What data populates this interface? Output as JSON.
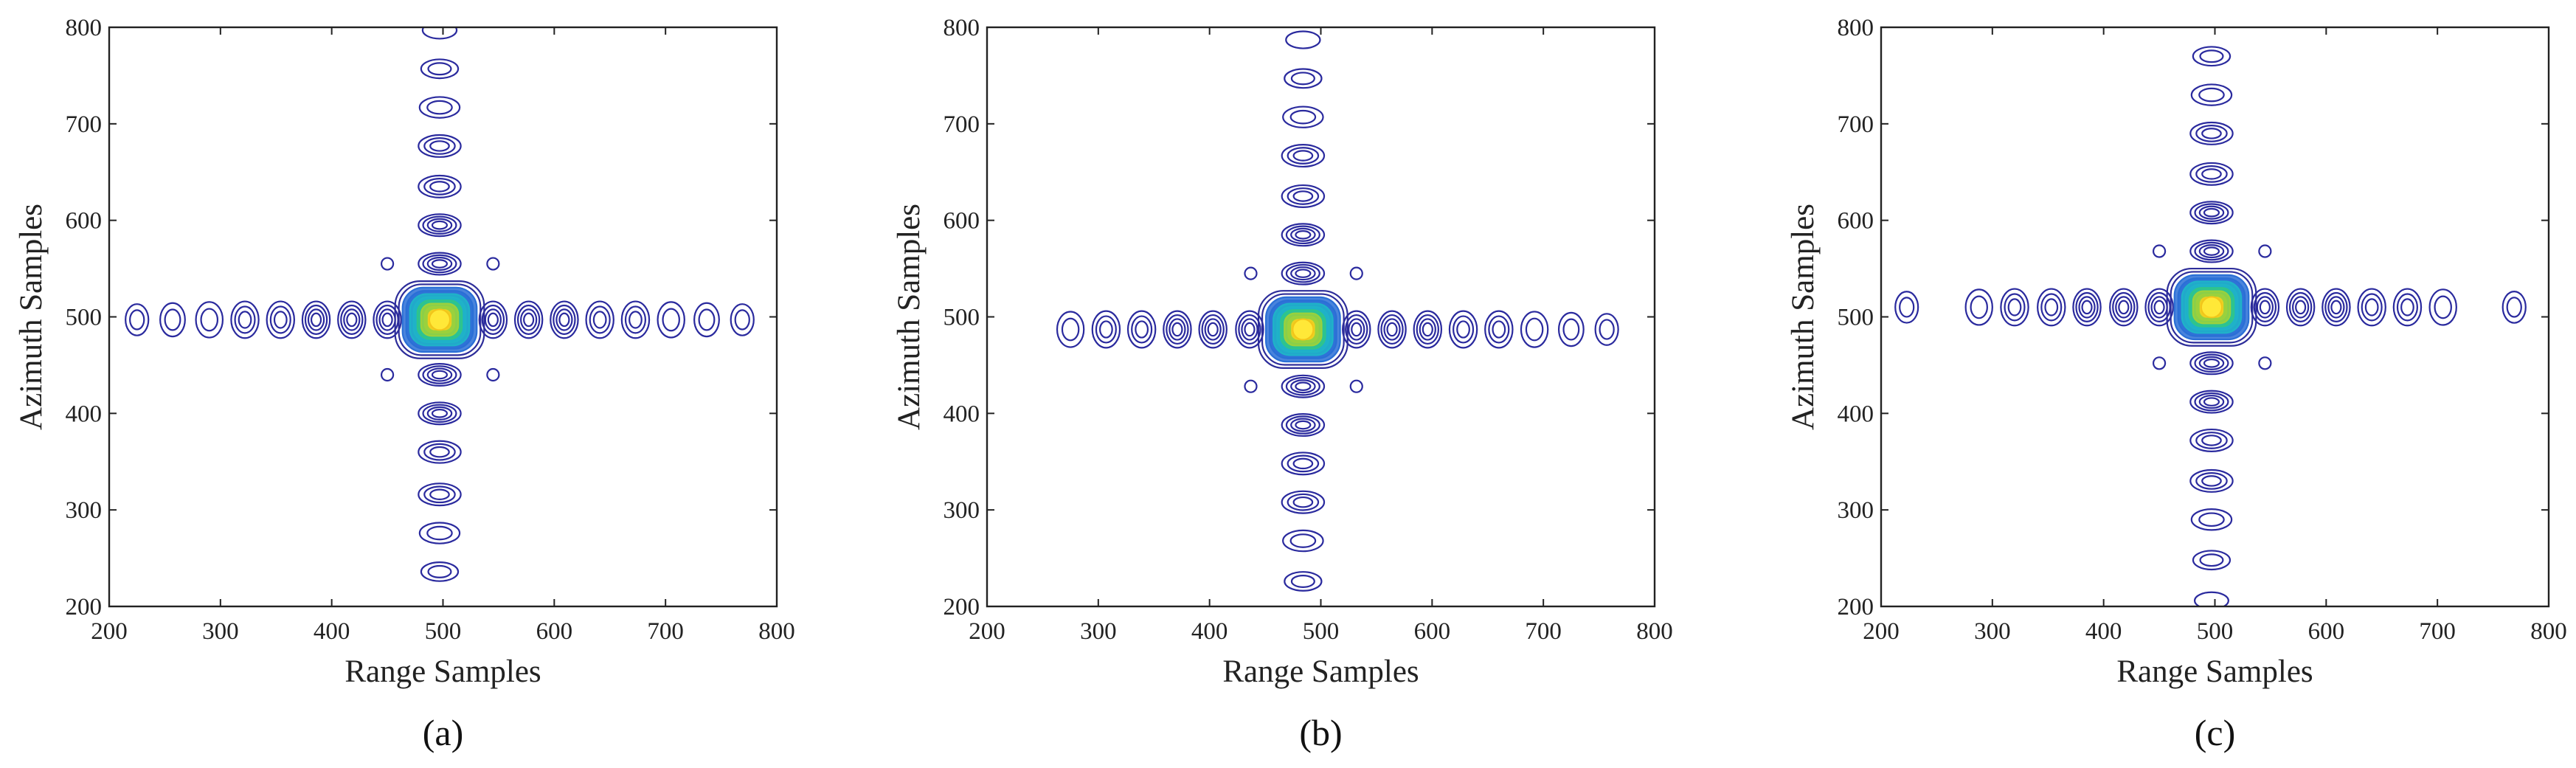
{
  "figure": {
    "contour_color": "#2a2a9e",
    "core_colors": [
      "#2d2d9a",
      "#2a6fd6",
      "#1fb3c8",
      "#2fc58a",
      "#9bd13c",
      "#f0d020",
      "#ffe838"
    ]
  },
  "chart_data": [
    {
      "type": "contour",
      "panel_label": "(a)",
      "xlabel": "Range Samples",
      "ylabel": "Azimuth Samples",
      "xlim": [
        200,
        800
      ],
      "ylim": [
        200,
        800
      ],
      "xticks": [
        200,
        300,
        400,
        500,
        600,
        700,
        800
      ],
      "yticks": [
        200,
        300,
        400,
        500,
        600,
        700,
        800
      ],
      "peak": {
        "x": 497,
        "y": 497
      },
      "range_sidelobes": [
        225,
        257,
        290,
        322,
        354,
        386,
        418,
        450,
        545,
        577,
        609,
        641,
        673,
        705,
        737,
        769
      ],
      "azimuth_sidelobes": [
        236,
        276,
        316,
        360,
        400,
        440,
        555,
        595,
        635,
        677,
        717,
        757,
        797
      ],
      "diagonal_lobes": [
        [
          450,
          440
        ],
        [
          545,
          440
        ],
        [
          450,
          555
        ],
        [
          545,
          555
        ]
      ]
    },
    {
      "type": "contour",
      "panel_label": "(b)",
      "xlabel": "Range Samples",
      "ylabel": "Azimuth Samples",
      "xlim": [
        200,
        800
      ],
      "ylim": [
        200,
        800
      ],
      "xticks": [
        200,
        300,
        400,
        500,
        600,
        700,
        800
      ],
      "yticks": [
        200,
        300,
        400,
        500,
        600,
        700,
        800
      ],
      "peak": {
        "x": 484,
        "y": 487
      },
      "range_sidelobes": [
        275,
        307,
        339,
        371,
        403,
        436,
        532,
        564,
        596,
        628,
        660,
        692,
        725,
        757
      ],
      "azimuth_sidelobes": [
        226,
        268,
        308,
        348,
        388,
        428,
        545,
        585,
        625,
        667,
        707,
        747,
        787
      ],
      "diagonal_lobes": [
        [
          437,
          428
        ],
        [
          532,
          428
        ],
        [
          437,
          545
        ],
        [
          532,
          545
        ]
      ]
    },
    {
      "type": "contour",
      "panel_label": "(c)",
      "xlabel": "Range Samples",
      "ylabel": "Azimuth Samples",
      "xlim": [
        200,
        800
      ],
      "ylim": [
        200,
        800
      ],
      "xticks": [
        200,
        300,
        400,
        500,
        600,
        700,
        800
      ],
      "yticks": [
        200,
        300,
        400,
        500,
        600,
        700,
        800
      ],
      "peak": {
        "x": 497,
        "y": 510
      },
      "range_sidelobes": [
        223,
        288,
        320,
        353,
        385,
        418,
        450,
        545,
        577,
        609,
        641,
        673,
        705,
        769
      ],
      "azimuth_sidelobes": [
        206,
        248,
        290,
        330,
        372,
        412,
        452,
        568,
        608,
        648,
        690,
        730,
        770
      ],
      "diagonal_lobes": [
        [
          450,
          452
        ],
        [
          545,
          452
        ],
        [
          450,
          568
        ],
        [
          545,
          568
        ]
      ]
    }
  ]
}
